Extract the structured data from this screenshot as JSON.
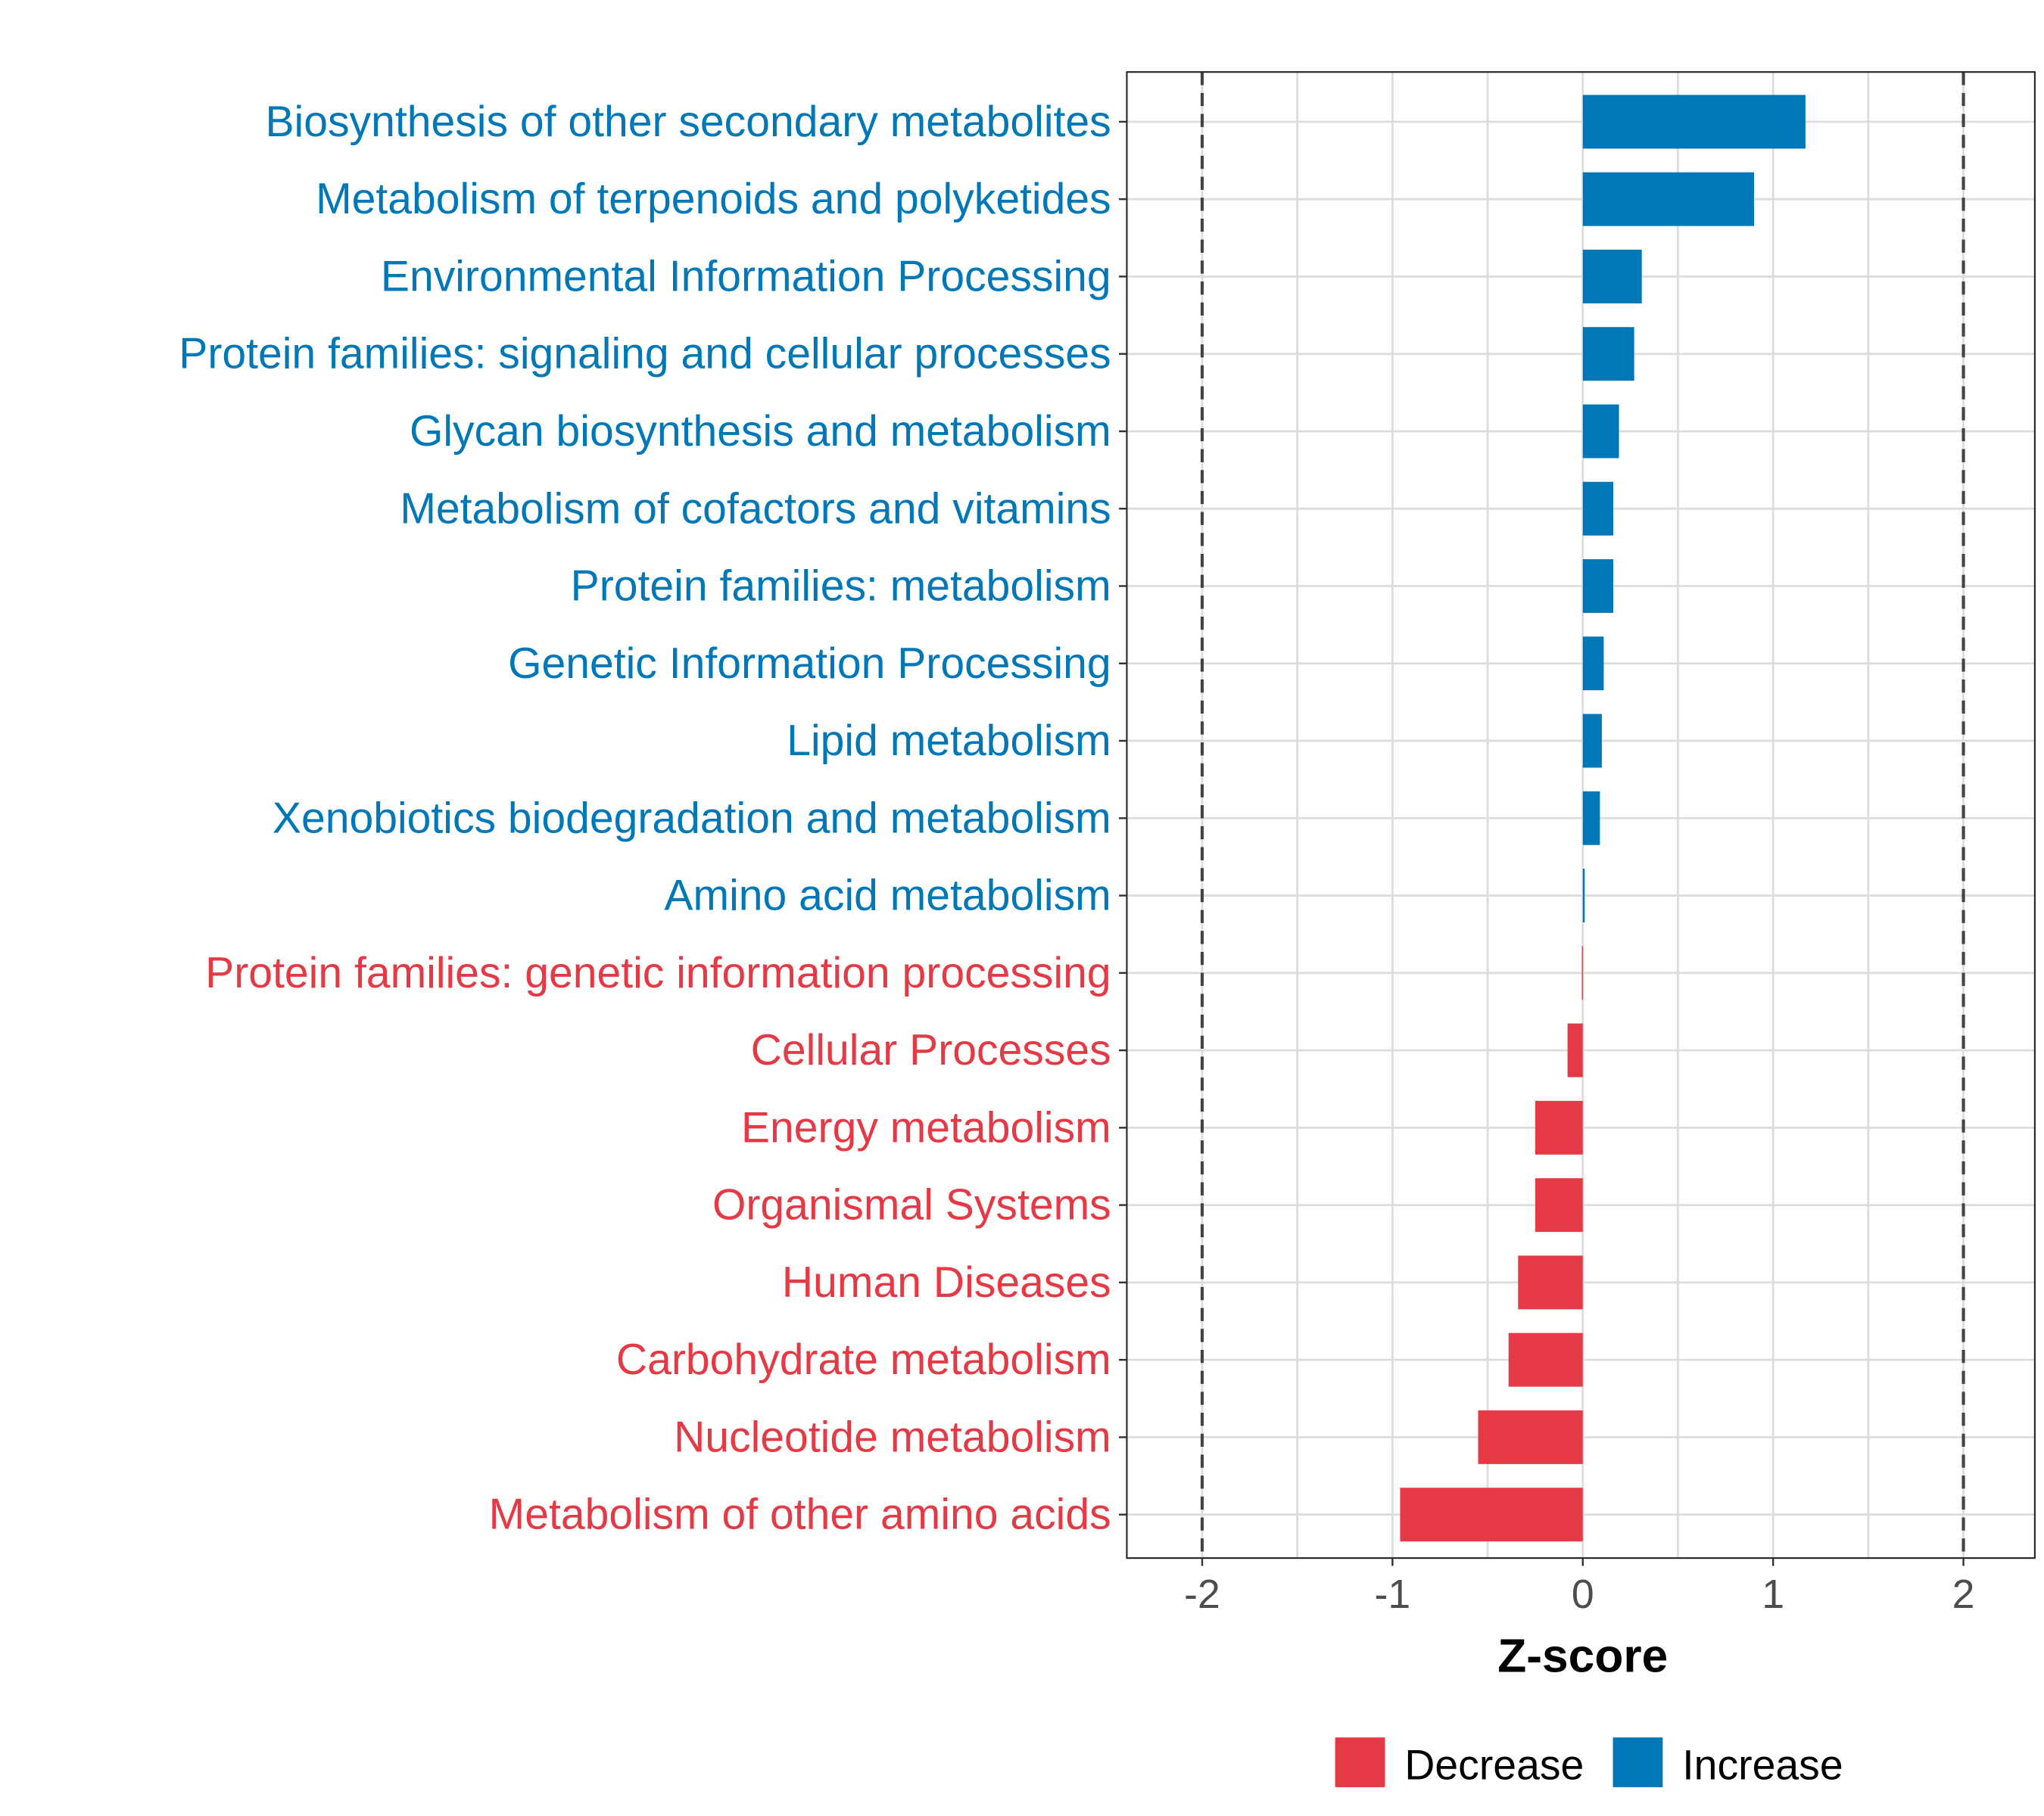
{
  "chart_data": {
    "type": "bar",
    "orientation": "horizontal",
    "title": "",
    "xlabel": "Z-score",
    "ylabel": "",
    "xlim": [
      -2.38,
      2.38
    ],
    "xticks": [
      -2,
      -1,
      0,
      1,
      2
    ],
    "xtick_labels": [
      "-2",
      "-1",
      "0",
      "1",
      "2"
    ],
    "reference_lines": [
      -2,
      2
    ],
    "grid": true,
    "categories": [
      "Biosynthesis of other secondary metabolites",
      "Metabolism of terpenoids and polyketides",
      "Environmental Information Processing",
      "Protein families: signaling and cellular processes",
      "Glycan biosynthesis and metabolism",
      "Metabolism of cofactors and vitamins",
      "Protein families: metabolism",
      "Genetic Information Processing",
      "Lipid metabolism",
      "Xenobiotics biodegradation and metabolism",
      "Amino acid metabolism",
      "Protein families: genetic information processing",
      "Cellular Processes",
      "Energy metabolism",
      "Organismal Systems",
      "Human Diseases",
      "Carbohydrate metabolism",
      "Nucleotide metabolism",
      "Metabolism of other amino acids"
    ],
    "values": [
      1.17,
      0.9,
      0.31,
      0.27,
      0.19,
      0.16,
      0.16,
      0.11,
      0.1,
      0.09,
      0.01,
      -0.005,
      -0.08,
      -0.25,
      -0.25,
      -0.34,
      -0.39,
      -0.55,
      -0.96
    ],
    "groups": [
      "Increase",
      "Increase",
      "Increase",
      "Increase",
      "Increase",
      "Increase",
      "Increase",
      "Increase",
      "Increase",
      "Increase",
      "Increase",
      "Decrease",
      "Decrease",
      "Decrease",
      "Decrease",
      "Decrease",
      "Decrease",
      "Decrease",
      "Decrease"
    ],
    "legend": {
      "placement": "bottom",
      "entries": [
        {
          "label": "Decrease",
          "color": "#E63946"
        },
        {
          "label": "Increase",
          "color": "#0077B6"
        }
      ]
    }
  }
}
